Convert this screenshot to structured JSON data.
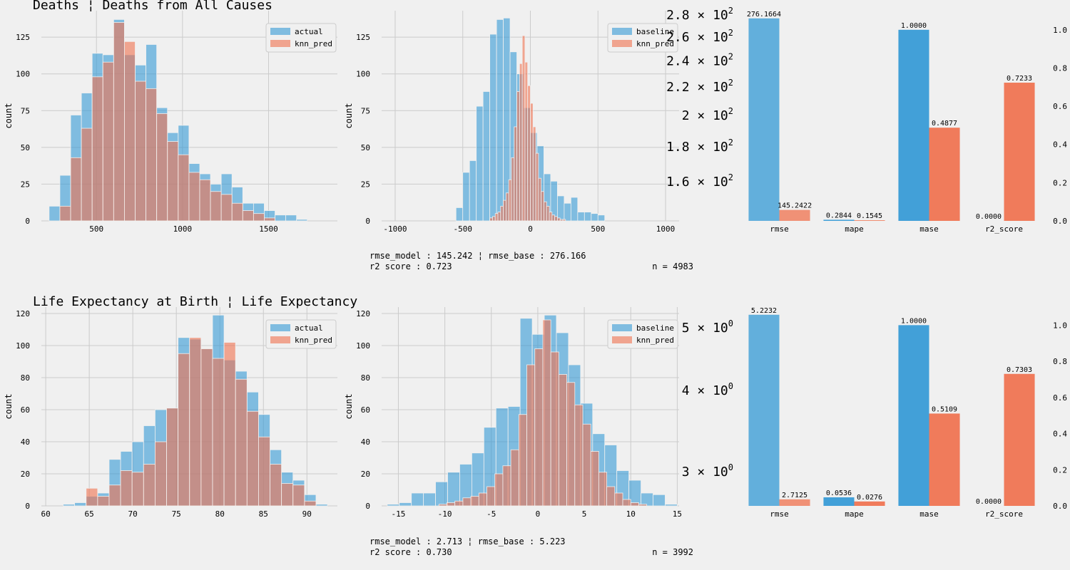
{
  "chart_data": [
    {
      "type": "bar",
      "panel": "row1-actual-vs-pred-histogram",
      "title": "Deaths ¦ Deaths from All Causes",
      "xlabel": "",
      "ylabel": "count",
      "xlim": [
        180,
        1900
      ],
      "ylim": [
        0,
        143
      ],
      "xticks": [
        500,
        1000,
        1500
      ],
      "yticks": [
        0,
        25,
        50,
        75,
        100,
        125
      ],
      "legend": "top-right",
      "grid": true,
      "series": [
        {
          "name": "actual",
          "color": "#3399d6",
          "bin_start": 225,
          "bin_width": 62.5,
          "values": [
            10,
            31,
            72,
            87,
            114,
            113,
            137,
            113,
            106,
            120,
            77,
            60,
            65,
            39,
            32,
            25,
            32,
            23,
            12,
            12,
            7,
            4,
            4,
            1
          ]
        },
        {
          "name": "knn_pred",
          "color": "#f0714e",
          "bin_start": 225,
          "bin_width": 62.5,
          "values": [
            0,
            10,
            43,
            63,
            98,
            108,
            135,
            122,
            95,
            90,
            73,
            54,
            45,
            33,
            28,
            20,
            18,
            12,
            7,
            5,
            2,
            0,
            0,
            0
          ]
        }
      ]
    },
    {
      "type": "bar",
      "panel": "row1-residual-histogram",
      "title": "",
      "xlabel": "",
      "ylabel": "count",
      "xlim": [
        -1100,
        1100
      ],
      "ylim": [
        0,
        143
      ],
      "xticks": [
        -1000,
        -500,
        0,
        500,
        1000
      ],
      "yticks": [
        0,
        25,
        50,
        75,
        100,
        125
      ],
      "legend": "top-right",
      "grid": true,
      "series": [
        {
          "name": "baseline",
          "color": "#3399d6",
          "bin_start": -550,
          "bin_width": 50,
          "values": [
            9,
            33,
            41,
            78,
            88,
            127,
            137,
            138,
            115,
            100,
            77,
            60,
            51,
            32,
            27,
            17,
            12,
            16,
            6,
            6,
            5,
            4
          ]
        },
        {
          "name": "knn_pred",
          "color": "#f0714e",
          "bin_start": -300,
          "bin_width": 20,
          "values": [
            2,
            3,
            5,
            6,
            10,
            14,
            19,
            28,
            43,
            64,
            88,
            107,
            126,
            108,
            92,
            80,
            64,
            46,
            29,
            20,
            13,
            10,
            6,
            4,
            3,
            2,
            1,
            1
          ]
        }
      ]
    },
    {
      "type": "bar",
      "panel": "row1-metrics",
      "title": "",
      "categories": [
        "rmse",
        "mape",
        "mase",
        "r2_score"
      ],
      "series": [
        {
          "name": "",
          "color": "#3399d6",
          "values": [
            276.1664,
            0.2844,
            1.0,
            0.0
          ]
        },
        {
          "name": "",
          "color": "#f0714e",
          "values": [
            145.2422,
            0.1545,
            0.4877,
            0.7233
          ]
        }
      ],
      "value_labels": [
        [
          "276.1664",
          "0.2844",
          "1.0000",
          "0.0000"
        ],
        [
          "145.2422",
          "0.1545",
          "0.4877",
          "0.7233"
        ]
      ],
      "left_axis": {
        "scale": "log",
        "ticks": [
          160,
          180,
          200,
          220,
          240,
          260,
          280
        ],
        "tick_labels": [
          [
            "1.6",
            "10",
            "2"
          ],
          [
            "1.8",
            "10",
            "2"
          ],
          [
            "2",
            "10",
            "2"
          ],
          [
            "2.2",
            "10",
            "2"
          ],
          [
            "2.4",
            "10",
            "2"
          ],
          [
            "2.6",
            "10",
            "2"
          ],
          [
            "2.8",
            "10",
            "2"
          ]
        ],
        "range": [
          140,
          278
        ]
      },
      "right_axis": {
        "scale": "linear",
        "ticks": [
          0.0,
          0.2,
          0.4,
          0.6,
          0.8,
          1.0
        ],
        "tick_labels": [
          "0.0",
          "0.2",
          "0.4",
          "0.6",
          "0.8",
          "1.0"
        ],
        "range": [
          0,
          1.1
        ]
      },
      "grid": false
    },
    {
      "type": "bar",
      "panel": "row2-actual-vs-pred-histogram",
      "title": "Life Expectancy at Birth ¦ Life Expectancy",
      "xlabel": "",
      "ylabel": "count",
      "xlim": [
        59.5,
        93.5
      ],
      "ylim": [
        0,
        124
      ],
      "xticks": [
        60,
        65,
        70,
        75,
        80,
        85,
        90
      ],
      "yticks": [
        0,
        20,
        40,
        60,
        80,
        100,
        120
      ],
      "legend": "top-right",
      "grid": true,
      "series": [
        {
          "name": "actual",
          "color": "#3399d6",
          "bin_start": 62.0,
          "bin_width": 1.32,
          "values": [
            1,
            2,
            6,
            8,
            29,
            34,
            40,
            50,
            60,
            61,
            105,
            104,
            98,
            119,
            91,
            84,
            71,
            57,
            35,
            21,
            16,
            7,
            1
          ]
        },
        {
          "name": "knn_pred",
          "color": "#f0714e",
          "bin_start": 62.0,
          "bin_width": 1.32,
          "values": [
            0,
            0,
            11,
            6,
            13,
            22,
            21,
            26,
            40,
            61,
            95,
            105,
            98,
            92,
            102,
            79,
            59,
            43,
            26,
            14,
            13,
            3,
            0
          ]
        }
      ]
    },
    {
      "type": "bar",
      "panel": "row2-residual-histogram",
      "title": "",
      "xlabel": "",
      "ylabel": "count",
      "xlim": [
        -16.8,
        15.2
      ],
      "ylim": [
        0,
        124
      ],
      "xticks": [
        -15,
        -10,
        -5,
        0,
        5,
        10,
        15
      ],
      "yticks": [
        0,
        20,
        40,
        60,
        80,
        100,
        120
      ],
      "legend": "top-right",
      "grid": true,
      "series": [
        {
          "name": "baseline",
          "color": "#3399d6",
          "bin_start": -16.2,
          "bin_width": 1.3,
          "values": [
            1,
            2,
            8,
            8,
            15,
            21,
            26,
            33,
            49,
            61,
            62,
            117,
            107,
            119,
            108,
            88,
            64,
            45,
            38,
            22,
            16,
            8,
            7,
            1
          ]
        },
        {
          "name": "knn_pred",
          "color": "#f0714e",
          "bin_start": -11.5,
          "bin_width": 0.86,
          "values": [
            0,
            1,
            2,
            3,
            5,
            6,
            8,
            12,
            20,
            25,
            35,
            57,
            88,
            98,
            116,
            96,
            82,
            77,
            63,
            51,
            34,
            21,
            12,
            8,
            4,
            2,
            1
          ]
        }
      ]
    },
    {
      "type": "bar",
      "panel": "row2-metrics",
      "title": "",
      "categories": [
        "rmse",
        "mape",
        "mase",
        "r2_score"
      ],
      "series": [
        {
          "name": "",
          "color": "#3399d6",
          "values": [
            5.2232,
            0.0536,
            1.0,
            0.0
          ]
        },
        {
          "name": "",
          "color": "#f0714e",
          "values": [
            2.7125,
            0.0276,
            0.5109,
            0.7303
          ]
        }
      ],
      "value_labels": [
        [
          "5.2232",
          "0.0536",
          "1.0000",
          "0.0000"
        ],
        [
          "2.7125",
          "0.0276",
          "0.5109",
          "0.7303"
        ]
      ],
      "left_axis": {
        "scale": "log",
        "ticks": [
          3,
          4,
          5
        ],
        "tick_labels": [
          [
            "3",
            "10",
            "0"
          ],
          [
            "4",
            "10",
            "0"
          ],
          [
            "5",
            "10",
            "0"
          ]
        ],
        "range": [
          2.65,
          5.26
        ]
      },
      "right_axis": {
        "scale": "linear",
        "ticks": [
          0.0,
          0.2,
          0.4,
          0.6,
          0.8,
          1.0
        ],
        "tick_labels": [
          "0.0",
          "0.2",
          "0.4",
          "0.6",
          "0.8",
          "1.0"
        ],
        "range": [
          0,
          1.1
        ]
      },
      "grid": false
    }
  ],
  "annotations": [
    {
      "line1": "rmse_model : 145.242 ¦ rmse_base : 276.166",
      "line2": "r2 score : 0.723",
      "n": "n = 4983"
    },
    {
      "line1": "rmse_model : 2.713 ¦ rmse_base : 5.223",
      "line2": "r2 score : 0.730",
      "n": "n = 3992"
    }
  ],
  "colors": {
    "background": "#f0f0f0",
    "grid": "#cbcbcb",
    "blue": "#3399d6",
    "red": "#f0714e"
  }
}
